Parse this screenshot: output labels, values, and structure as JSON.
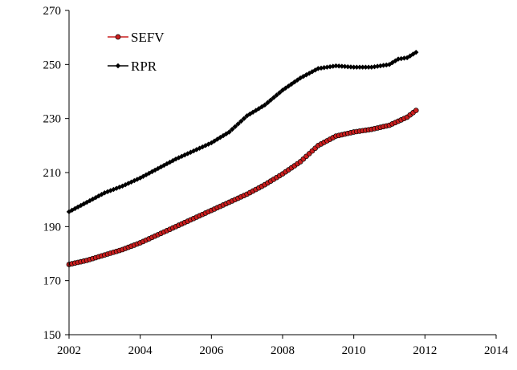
{
  "chart_data": {
    "type": "line",
    "title": "",
    "xlabel": "",
    "ylabel": "",
    "xlim": [
      2002,
      2014
    ],
    "ylim": [
      150,
      270
    ],
    "xticks": [
      2002,
      2004,
      2006,
      2008,
      2010,
      2012,
      2014
    ],
    "yticks": [
      150,
      170,
      190,
      210,
      230,
      250,
      270
    ],
    "grid": false,
    "legend_position": "top-left",
    "series": [
      {
        "name": "SEFV",
        "color": "#cc1e1e",
        "marker": "circle",
        "x": [
          2002.0,
          2002.5,
          2003.0,
          2003.5,
          2004.0,
          2004.5,
          2005.0,
          2005.5,
          2006.0,
          2006.5,
          2007.0,
          2007.5,
          2008.0,
          2008.5,
          2009.0,
          2009.5,
          2010.0,
          2010.5,
          2011.0,
          2011.5,
          2011.75
        ],
        "y": [
          176,
          177.5,
          179.5,
          181.5,
          184,
          187,
          190,
          193,
          196,
          199,
          202,
          205.5,
          209.5,
          214,
          220,
          223.5,
          225,
          226,
          227.5,
          230.5,
          233
        ]
      },
      {
        "name": "RPR",
        "color": "#000000",
        "marker": "diamond",
        "x": [
          2002.0,
          2002.5,
          2003.0,
          2003.5,
          2004.0,
          2004.5,
          2005.0,
          2005.5,
          2006.0,
          2006.5,
          2007.0,
          2007.5,
          2008.0,
          2008.5,
          2009.0,
          2009.5,
          2010.0,
          2010.5,
          2011.0,
          2011.25,
          2011.5,
          2011.75
        ],
        "y": [
          195.5,
          199,
          202.5,
          205,
          208,
          211.5,
          215,
          218,
          221,
          225,
          231,
          235,
          240.5,
          245,
          248.5,
          249.5,
          249,
          249,
          250,
          252,
          252.5,
          254.5
        ]
      }
    ]
  }
}
